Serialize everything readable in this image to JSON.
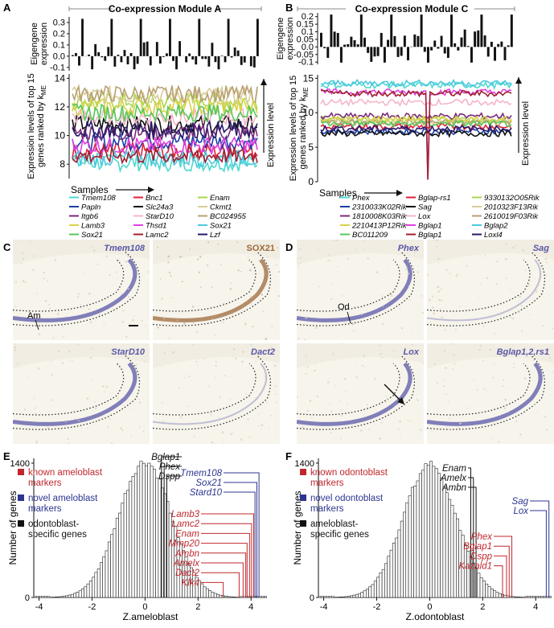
{
  "colors": {
    "red": "#c0272d",
    "blue": "#2c3590",
    "black": "#111111",
    "tissue_light": "#f1ede2",
    "stain_blue": "#5a58a8",
    "stain_brown": "#9c6a3c"
  },
  "panel_labels": [
    "A",
    "B",
    "C",
    "D",
    "E",
    "F"
  ],
  "panelA": {
    "title": "Co-expression Module A",
    "eigengene_label": [
      "Eigengene",
      "expression"
    ],
    "eigengene_ticks": [
      "0.3",
      "0.2",
      "0.1",
      "0.0",
      "-0.1"
    ],
    "levels_label": [
      "Expression levels of top 15",
      "genes ranked by k"
    ],
    "kme_sub": "ME",
    "level_ticks": [
      "14",
      "12",
      "10",
      "8"
    ],
    "samples_label": "Samples",
    "expression_level_label": "Expression level",
    "legend": [
      {
        "name": "Tmem108",
        "color": "#4fd8d0"
      },
      {
        "name": "Bnc1",
        "color": "#e0203a"
      },
      {
        "name": "Enam",
        "color": "#a8d84a"
      },
      {
        "name": "Papln",
        "color": "#1a3ea8"
      },
      {
        "name": "Slc24a3",
        "color": "#111111"
      },
      {
        "name": "Ckmt1",
        "color": "#d8cc98"
      },
      {
        "name": "Itgb6",
        "color": "#7a2a7a"
      },
      {
        "name": "StarD10",
        "color": "#f4b6c8"
      },
      {
        "name": "BC024955",
        "color": "#b8a070"
      },
      {
        "name": "Lamb3",
        "color": "#d8d24a"
      },
      {
        "name": "Thsd1",
        "color": "#e040e0"
      },
      {
        "name": "Sox21",
        "color": "#4ac8e0"
      },
      {
        "name": "Sox21",
        "color": "#58c858"
      },
      {
        "name": "Lamc2",
        "color": "#a02030"
      },
      {
        "name": "Lzf",
        "color": "#2a1a68"
      }
    ]
  },
  "panelB": {
    "title": "Co-expression Module C",
    "eigengene_label": [
      "Eigengene",
      "expression"
    ],
    "eigengene_ticks": [
      "0.2",
      "0.15",
      "0.1",
      "0.05",
      "0.0",
      "-0.05",
      "-0.1"
    ],
    "levels_label": [
      "Expression levels of top 15",
      "genes ranked by k"
    ],
    "kme_sub": "ME",
    "level_ticks": [
      "15",
      "10",
      "5",
      "0"
    ],
    "samples_label": "Samples",
    "expression_level_label": "Expression level",
    "legend": [
      {
        "name": "Phex",
        "color": "#4fd8d0"
      },
      {
        "name": "Bglap-rs1",
        "color": "#e0203a"
      },
      {
        "name": "9330132O05Rik",
        "color": "#a8d84a"
      },
      {
        "name": "2310033K02Rik",
        "color": "#1a3ea8"
      },
      {
        "name": "Sag",
        "color": "#111111"
      },
      {
        "name": "2010323F13Rik",
        "color": "#d8cc98"
      },
      {
        "name": "1810008K03Rik",
        "color": "#7a2a7a"
      },
      {
        "name": "Lox",
        "color": "#f4b6c8"
      },
      {
        "name": "2610019F03Rik",
        "color": "#b8a070"
      },
      {
        "name": "2210413P12Rik",
        "color": "#d8d24a"
      },
      {
        "name": "Bglap1",
        "color": "#e040e0"
      },
      {
        "name": "Bglap2",
        "color": "#4ac8e0"
      },
      {
        "name": "BC011209",
        "color": "#58c858"
      },
      {
        "name": "Bglap1",
        "color": "#a02030"
      },
      {
        "name": "Loxl4",
        "color": "#2a1a68"
      }
    ]
  },
  "panelC": {
    "images": [
      {
        "label": "Tmem108",
        "style": "italic-blue"
      },
      {
        "label": "SOX21",
        "style": "brown"
      },
      {
        "label": "StarD10",
        "style": "italic-blue"
      },
      {
        "label": "Dact2",
        "style": "italic-blue"
      }
    ],
    "am_label": "Am"
  },
  "panelD": {
    "images": [
      {
        "label": "Phex",
        "style": "italic-blue"
      },
      {
        "label": "Sag",
        "style": "italic-blue"
      },
      {
        "label": "Lox",
        "style": "italic-blue"
      },
      {
        "label": "Bglap1,2,rs1",
        "style": "italic-blue"
      }
    ],
    "od_label": "Od"
  },
  "chart_data": [
    {
      "type": "bar",
      "panel": "E",
      "title": "",
      "xlabel": "Z.ameloblast",
      "ylabel": "Number of genes",
      "xlim": [
        -4.2,
        4.6
      ],
      "ylim": [
        0,
        1450
      ],
      "xticks": [
        "-4",
        "-2",
        "0",
        "2",
        "4"
      ],
      "yticks": [
        "0",
        "1400"
      ],
      "histogram_mean": 0.0,
      "histogram_sd": 1.0,
      "histogram_peak": 1420,
      "bin_width": 0.1,
      "legend": [
        {
          "label": "known ameloblast markers",
          "color": "#c0272d"
        },
        {
          "label": "novel ameloblast markers",
          "color": "#2c3590"
        },
        {
          "label": "odontoblast-specific genes",
          "color": "#111111"
        }
      ],
      "legend_lines": [
        [
          "known ameloblast",
          "markers"
        ],
        [
          "novel ameloblast",
          "markers"
        ],
        [
          "odontoblast-",
          "specific genes"
        ]
      ],
      "annotations": [
        {
          "gene": "Bglap1",
          "x": 0.62,
          "group": "black"
        },
        {
          "gene": "Phex",
          "x": 0.72,
          "group": "black"
        },
        {
          "gene": "Dspp",
          "x": 0.82,
          "group": "black"
        },
        {
          "gene": "Tmem108",
          "x": 4.3,
          "group": "blue"
        },
        {
          "gene": "Sox21",
          "x": 4.22,
          "group": "blue"
        },
        {
          "gene": "Stard10",
          "x": 4.15,
          "group": "blue"
        },
        {
          "gene": "Lamb3",
          "x": 4.1,
          "group": "red"
        },
        {
          "gene": "Lamc2",
          "x": 4.02,
          "group": "red"
        },
        {
          "gene": "Enam",
          "x": 3.95,
          "group": "red"
        },
        {
          "gene": "Mmp20",
          "x": 3.85,
          "group": "red"
        },
        {
          "gene": "Ambn",
          "x": 3.8,
          "group": "red"
        },
        {
          "gene": "Amelx",
          "x": 3.7,
          "group": "red"
        },
        {
          "gene": "Dact2",
          "x": 3.55,
          "group": "red"
        },
        {
          "gene": "Klk4",
          "x": 2.95,
          "group": "red"
        }
      ]
    },
    {
      "type": "bar",
      "panel": "F",
      "title": "",
      "xlabel": "Z.odontoblast",
      "ylabel": "Number of genes",
      "xlim": [
        -4.2,
        4.6
      ],
      "ylim": [
        0,
        1450
      ],
      "xticks": [
        "-4",
        "-2",
        "0",
        "2",
        "4"
      ],
      "yticks": [
        "0",
        "1400"
      ],
      "histogram_mean": 0.0,
      "histogram_sd": 1.0,
      "histogram_peak": 1400,
      "bin_width": 0.1,
      "legend": [
        {
          "label": "known odontoblast markers",
          "color": "#c0272d"
        },
        {
          "label": "novel odontoblast markers",
          "color": "#2c3590"
        },
        {
          "label": "ameloblast-specific genes",
          "color": "#111111"
        }
      ],
      "legend_lines": [
        [
          "known odontoblast",
          "markers"
        ],
        [
          "novel odontoblast",
          "markers"
        ],
        [
          "ameloblast-",
          "specific genes"
        ]
      ],
      "annotations": [
        {
          "gene": "Enam",
          "x": 1.55,
          "group": "black"
        },
        {
          "gene": "Amelx",
          "x": 1.65,
          "group": "black"
        },
        {
          "gene": "Ambn",
          "x": 1.75,
          "group": "black"
        },
        {
          "gene": "Sag",
          "x": 4.5,
          "group": "blue"
        },
        {
          "gene": "Lox",
          "x": 4.4,
          "group": "blue"
        },
        {
          "gene": "Phex",
          "x": 3.1,
          "group": "red"
        },
        {
          "gene": "Bglap1",
          "x": 3.0,
          "group": "red"
        },
        {
          "gene": "Dspp",
          "x": 2.9,
          "group": "red"
        },
        {
          "gene": "Kazald1",
          "x": 2.75,
          "group": "red"
        }
      ]
    }
  ]
}
